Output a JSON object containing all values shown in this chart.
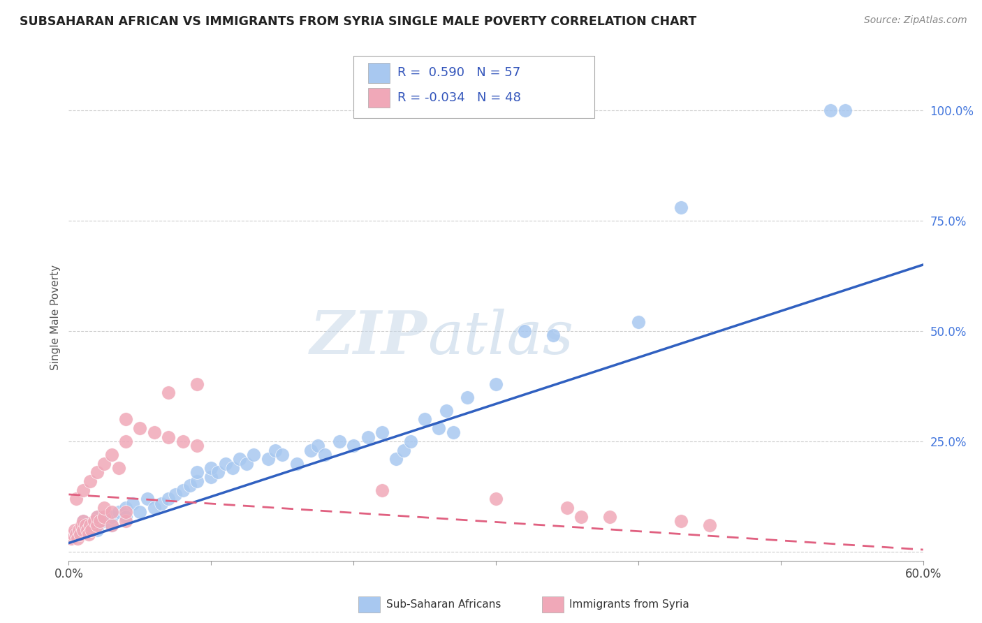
{
  "title": "SUBSAHARAN AFRICAN VS IMMIGRANTS FROM SYRIA SINGLE MALE POVERTY CORRELATION CHART",
  "source": "Source: ZipAtlas.com",
  "ylabel": "Single Male Poverty",
  "xlim": [
    0.0,
    0.6
  ],
  "ylim": [
    -0.02,
    1.08
  ],
  "legend_R_blue": "0.590",
  "legend_N_blue": "57",
  "legend_R_pink": "-0.034",
  "legend_N_pink": "48",
  "blue_color": "#a8c8f0",
  "pink_color": "#f0a8b8",
  "line_blue": "#3060c0",
  "line_pink": "#e06080",
  "watermark_zip": "ZIP",
  "watermark_atlas": "atlas",
  "blue_scatter_x": [
    0.005,
    0.01,
    0.01,
    0.015,
    0.02,
    0.02,
    0.025,
    0.03,
    0.03,
    0.035,
    0.04,
    0.04,
    0.045,
    0.05,
    0.055,
    0.06,
    0.065,
    0.07,
    0.075,
    0.08,
    0.085,
    0.09,
    0.09,
    0.1,
    0.1,
    0.105,
    0.11,
    0.115,
    0.12,
    0.125,
    0.13,
    0.14,
    0.145,
    0.15,
    0.16,
    0.17,
    0.175,
    0.18,
    0.19,
    0.2,
    0.21,
    0.22,
    0.23,
    0.235,
    0.24,
    0.25,
    0.26,
    0.265,
    0.27,
    0.28,
    0.3,
    0.32,
    0.34,
    0.4,
    0.43,
    0.535,
    0.545
  ],
  "blue_scatter_y": [
    0.04,
    0.05,
    0.07,
    0.06,
    0.05,
    0.08,
    0.07,
    0.06,
    0.08,
    0.09,
    0.1,
    0.08,
    0.11,
    0.09,
    0.12,
    0.1,
    0.11,
    0.12,
    0.13,
    0.14,
    0.15,
    0.16,
    0.18,
    0.17,
    0.19,
    0.18,
    0.2,
    0.19,
    0.21,
    0.2,
    0.22,
    0.21,
    0.23,
    0.22,
    0.2,
    0.23,
    0.24,
    0.22,
    0.25,
    0.24,
    0.26,
    0.27,
    0.21,
    0.23,
    0.25,
    0.3,
    0.28,
    0.32,
    0.27,
    0.35,
    0.38,
    0.5,
    0.49,
    0.52,
    0.78,
    1.0,
    1.0
  ],
  "pink_scatter_x": [
    0.002,
    0.003,
    0.004,
    0.005,
    0.006,
    0.007,
    0.008,
    0.009,
    0.01,
    0.01,
    0.012,
    0.013,
    0.014,
    0.015,
    0.016,
    0.018,
    0.02,
    0.02,
    0.022,
    0.025,
    0.025,
    0.03,
    0.03,
    0.04,
    0.04,
    0.005,
    0.01,
    0.015,
    0.02,
    0.025,
    0.03,
    0.035,
    0.04,
    0.04,
    0.05,
    0.06,
    0.07,
    0.08,
    0.09,
    0.07,
    0.09,
    0.22,
    0.3,
    0.38,
    0.43,
    0.45,
    0.35,
    0.36
  ],
  "pink_scatter_y": [
    0.03,
    0.04,
    0.05,
    0.04,
    0.03,
    0.05,
    0.04,
    0.06,
    0.05,
    0.07,
    0.06,
    0.05,
    0.04,
    0.06,
    0.05,
    0.07,
    0.06,
    0.08,
    0.07,
    0.08,
    0.1,
    0.06,
    0.09,
    0.07,
    0.09,
    0.12,
    0.14,
    0.16,
    0.18,
    0.2,
    0.22,
    0.19,
    0.25,
    0.3,
    0.28,
    0.27,
    0.26,
    0.25,
    0.24,
    0.36,
    0.38,
    0.14,
    0.12,
    0.08,
    0.07,
    0.06,
    0.1,
    0.08
  ],
  "blue_line_x": [
    0.0,
    0.6
  ],
  "blue_line_y": [
    0.02,
    0.65
  ],
  "pink_line_x": [
    0.0,
    0.6
  ],
  "pink_line_y": [
    0.13,
    0.005
  ]
}
